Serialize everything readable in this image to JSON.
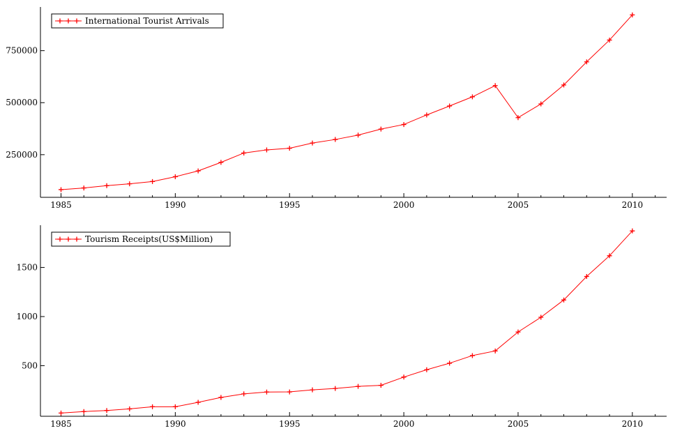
{
  "chart_data": [
    {
      "type": "line",
      "x": [
        1985,
        1986,
        1987,
        1988,
        1989,
        1990,
        1991,
        1992,
        1993,
        1994,
        1995,
        1996,
        1997,
        1998,
        1999,
        2000,
        2001,
        2002,
        2003,
        2004,
        2005,
        2006,
        2007,
        2008,
        2009,
        2010
      ],
      "series": [
        {
          "name": "International Tourist Arrivals",
          "values": [
            82000,
            90000,
            101000,
            110000,
            121000,
            144000,
            172000,
            213000,
            258000,
            273000,
            281000,
            306000,
            323000,
            344000,
            373000,
            395000,
            441000,
            484000,
            528000,
            582000,
            428000,
            494000,
            585000,
            696000,
            801000,
            922000
          ],
          "color": "#ff0000",
          "marker": "+"
        }
      ],
      "xticks": [
        "1985",
        "1990",
        "1995",
        "2000",
        "2005",
        "2010"
      ],
      "yticks": [
        "250000",
        "500000",
        "750000"
      ],
      "xlim": [
        1984.1,
        2011.5
      ],
      "ylim": [
        45000,
        960000
      ],
      "legend": "top-left",
      "grid": false
    },
    {
      "type": "line",
      "x": [
        1985,
        1986,
        1987,
        1988,
        1989,
        1990,
        1991,
        1992,
        1993,
        1994,
        1995,
        1996,
        1997,
        1998,
        1999,
        2000,
        2001,
        2002,
        2003,
        2004,
        2005,
        2006,
        2007,
        2008,
        2009,
        2010
      ],
      "series": [
        {
          "name": "Tourism Receipts(US$Million)",
          "values": [
            18,
            33,
            44,
            60,
            82,
            82,
            127,
            177,
            213,
            232,
            233,
            254,
            268,
            289,
            300,
            384,
            459,
            525,
            603,
            650,
            843,
            993,
            1169,
            1408,
            1619,
            1872
          ],
          "color": "#ff0000",
          "marker": "+"
        }
      ],
      "xticks": [
        "1985",
        "1990",
        "1995",
        "2000",
        "2005",
        "2010"
      ],
      "yticks": [
        "500",
        "1000",
        "1500"
      ],
      "xlim": [
        1984.1,
        2011.5
      ],
      "ylim": [
        -15,
        1930
      ],
      "legend": "top-left",
      "grid": false
    }
  ]
}
